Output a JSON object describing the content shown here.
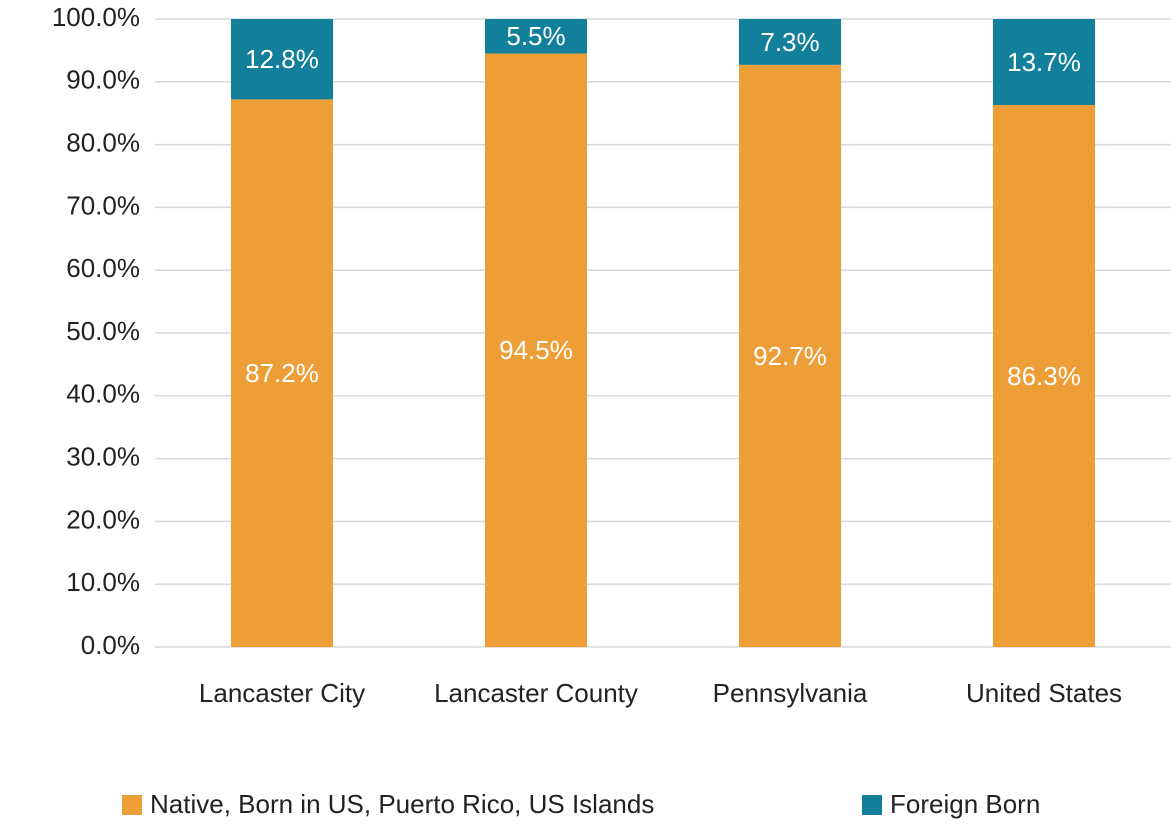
{
  "chart_data": {
    "type": "stacked_bar",
    "categories": [
      "Lancaster City",
      "Lancaster County",
      "Pennsylvania",
      "United States"
    ],
    "series": [
      {
        "name": "Native, Born in US, Puerto Rico, US Islands",
        "color": "#ed9e36",
        "values": [
          87.2,
          94.5,
          92.7,
          86.3
        ],
        "value_labels": [
          "87.2%",
          "94.5%",
          "92.7%",
          "86.3%"
        ]
      },
      {
        "name": "Foreign Born",
        "color": "#12809a",
        "values": [
          12.8,
          5.5,
          7.3,
          13.7
        ],
        "value_labels": [
          "12.8%",
          "5.5%",
          "7.3%",
          "13.7%"
        ]
      }
    ],
    "ylim": [
      0,
      100
    ],
    "yticks": [
      {
        "value": 0,
        "label": "0.0%"
      },
      {
        "value": 10,
        "label": "10.0%"
      },
      {
        "value": 20,
        "label": "20.0%"
      },
      {
        "value": 30,
        "label": "30.0%"
      },
      {
        "value": 40,
        "label": "40.0%"
      },
      {
        "value": 50,
        "label": "50.0%"
      },
      {
        "value": 60,
        "label": "60.0%"
      },
      {
        "value": 70,
        "label": "70.0%"
      },
      {
        "value": 80,
        "label": "80.0%"
      },
      {
        "value": 90,
        "label": "90.0%"
      },
      {
        "value": 100,
        "label": "100.0%"
      }
    ],
    "grid": true,
    "legend": "bottom"
  }
}
